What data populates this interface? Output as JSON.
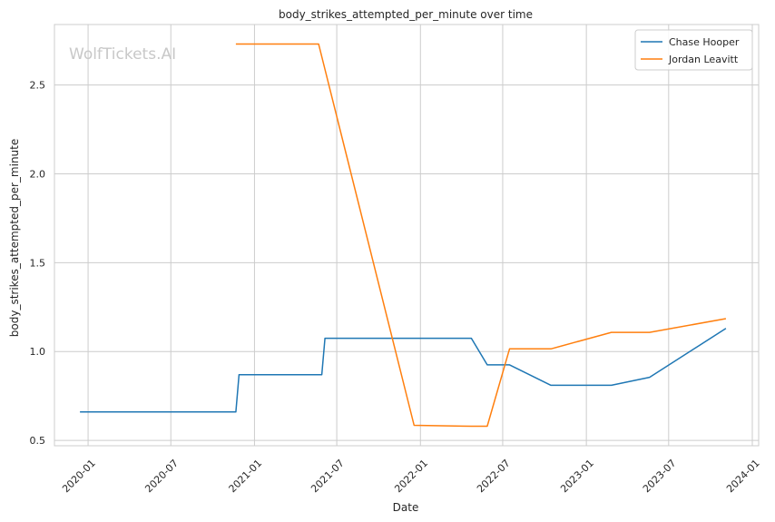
{
  "chart_data": {
    "type": "line",
    "title": "body_strikes_attempted_per_minute over time",
    "xlabel": "Date",
    "ylabel": "body_strikes_attempted_per_minute",
    "watermark": "WolfTickets.AI",
    "x_ticks": [
      "2020-01",
      "2020-07",
      "2021-01",
      "2021-07",
      "2022-01",
      "2022-07",
      "2023-01",
      "2023-07",
      "2024-01"
    ],
    "y_ticks": [
      "0.5",
      "1.0",
      "1.5",
      "2.0",
      "2.5"
    ],
    "xlim": [
      "2019-10-19",
      "2024-01-15"
    ],
    "ylim": [
      0.47,
      2.84
    ],
    "grid": true,
    "legend_position": "top-right",
    "series": [
      {
        "name": "Chase Hooper",
        "color": "#1f77b4",
        "x": [
          "2019-12-14",
          "2020-11-21",
          "2020-11-28",
          "2021-05-29",
          "2021-06-05",
          "2022-04-23",
          "2022-05-28",
          "2022-07-16",
          "2022-10-15",
          "2023-02-25",
          "2023-05-20",
          "2023-11-04"
        ],
        "y": [
          0.66,
          0.66,
          0.87,
          0.87,
          1.075,
          1.075,
          0.925,
          0.925,
          0.81,
          0.81,
          0.855,
          1.13
        ]
      },
      {
        "name": "Jordan Leavitt",
        "color": "#ff7f0e",
        "x": [
          "2020-11-21",
          "2021-05-22",
          "2021-12-18",
          "2022-04-23",
          "2022-05-28",
          "2022-07-16",
          "2022-10-15",
          "2023-02-25",
          "2023-05-20",
          "2023-11-04"
        ],
        "y": [
          2.73,
          2.73,
          0.585,
          0.58,
          0.58,
          1.015,
          1.015,
          1.108,
          1.108,
          1.185
        ]
      }
    ]
  }
}
